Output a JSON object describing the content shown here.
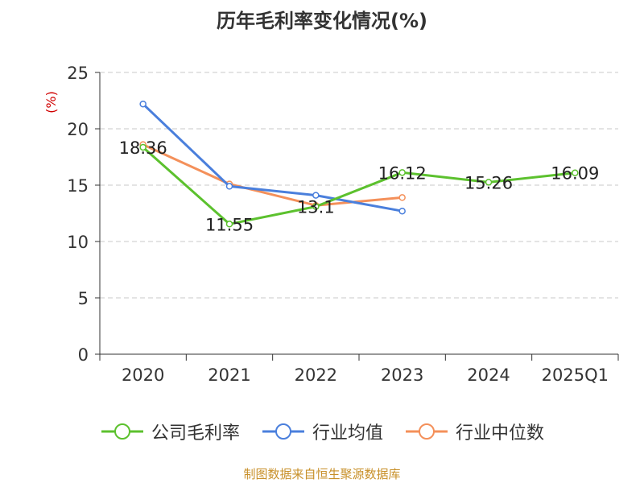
{
  "chart_data": {
    "type": "line",
    "title": "历年毛利率变化情况(%)",
    "ylabel": "(%)",
    "xlabel": "",
    "ylim": [
      0,
      25
    ],
    "yticks": [
      0,
      5,
      10,
      15,
      20,
      25
    ],
    "categories": [
      "2020",
      "2021",
      "2022",
      "2023",
      "2024",
      "2025Q1"
    ],
    "grid": true,
    "series": [
      {
        "name": "公司毛利率",
        "color": "#5cc12e",
        "values": [
          18.36,
          11.55,
          13.1,
          16.12,
          15.26,
          16.09
        ],
        "labels": [
          "18.36",
          "11.55",
          "13.1",
          "16.12",
          "15.26",
          "16.09"
        ]
      },
      {
        "name": "行业均值",
        "color": "#4a7fdc",
        "values": [
          22.2,
          14.9,
          14.1,
          12.7,
          null,
          null
        ]
      },
      {
        "name": "行业中位数",
        "color": "#f4905a",
        "values": [
          18.6,
          15.1,
          13.2,
          13.9,
          null,
          null
        ]
      }
    ],
    "source": "制图数据来自恒生聚源数据库"
  }
}
